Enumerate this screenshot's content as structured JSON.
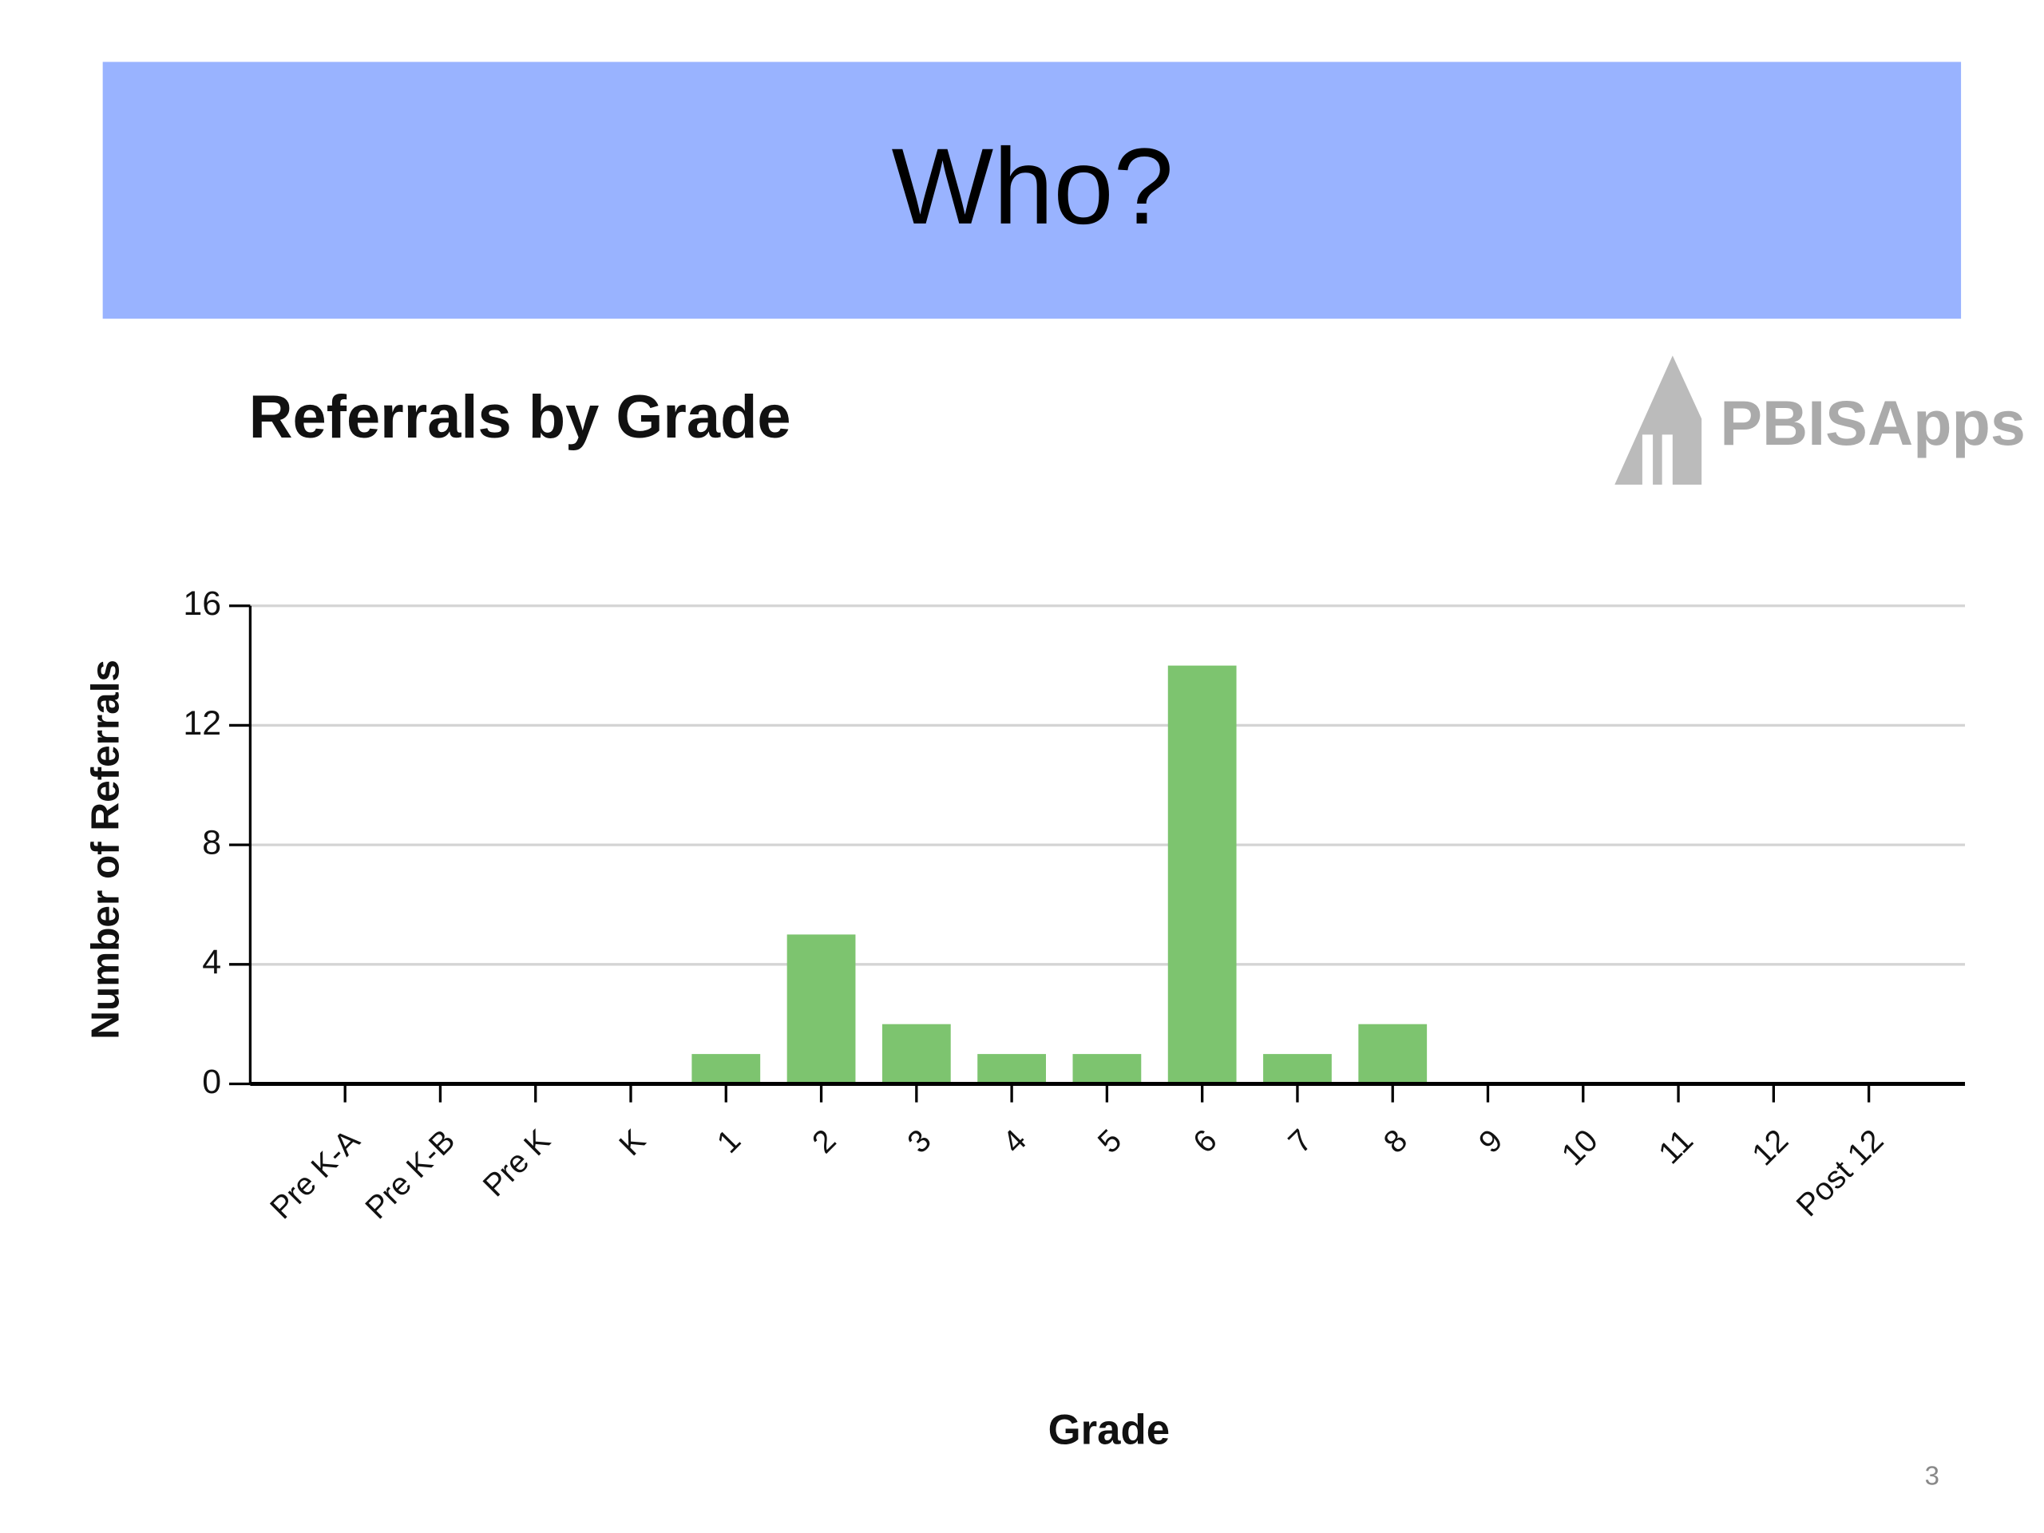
{
  "slide": {
    "title": "Who?",
    "page_number": "3",
    "logo": "PBISApps"
  },
  "chart_data": {
    "type": "bar",
    "title": "Referrals by Grade",
    "x_label": "Grade",
    "y_label": "Number of Referrals",
    "categories": [
      "Pre K-A",
      "Pre K-B",
      "Pre K",
      "K",
      "1",
      "2",
      "3",
      "4",
      "5",
      "6",
      "7",
      "8",
      "9",
      "10",
      "11",
      "12",
      "Post 12"
    ],
    "values": [
      0,
      0,
      0,
      0,
      1,
      5,
      2,
      1,
      1,
      14,
      1,
      2,
      0,
      0,
      0,
      0,
      0
    ],
    "color": "#7dc46f",
    "ylim": [
      0,
      16
    ],
    "yticks": [
      0,
      4,
      8,
      12,
      16
    ],
    "grid": true
  }
}
